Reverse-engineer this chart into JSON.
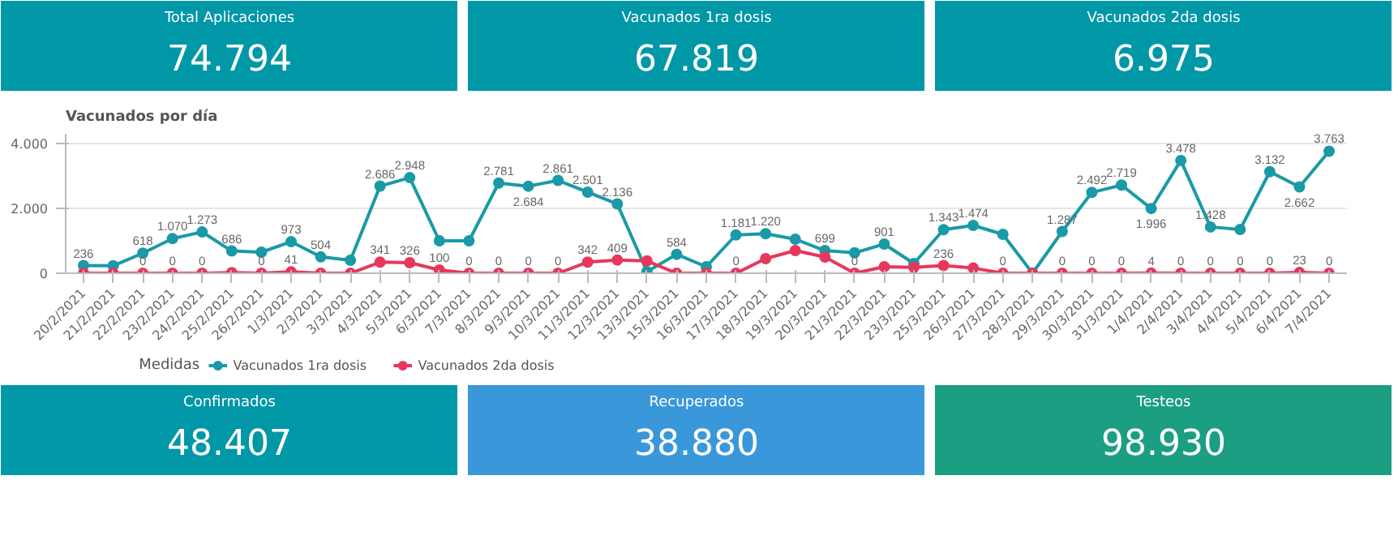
{
  "chart_data": [
    {
      "type": "other",
      "title": "Total Aplicaciones",
      "annotations": [
        "74.794"
      ],
      "colors": [
        "#0097a7"
      ]
    },
    {
      "type": "other",
      "title": "Vacunados 1ra dosis",
      "annotations": [
        "67.819"
      ],
      "colors": [
        "#0097a7"
      ]
    },
    {
      "type": "other",
      "title": "Vacunados 2da dosis",
      "annotations": [
        "6.975"
      ],
      "colors": [
        "#0097a7"
      ]
    },
    {
      "type": "line",
      "title": "Vacunados por día",
      "legend_title": "Medidas",
      "legend": "bottom",
      "grid": "y",
      "marker": "circle",
      "line_style": "solid",
      "categories": [
        "20/2/2021",
        "21/2/2021",
        "22/2/2021",
        "23/2/2021",
        "24/2/2021",
        "25/2/2021",
        "26/2/2021",
        "1/3/2021",
        "2/3/2021",
        "3/3/2021",
        "4/3/2021",
        "5/3/2021",
        "6/3/2021",
        "7/3/2021",
        "8/3/2021",
        "9/3/2021",
        "10/3/2021",
        "11/3/2021",
        "12/3/2021",
        "13/3/2021",
        "15/3/2021",
        "16/3/2021",
        "17/3/2021",
        "18/3/2021",
        "19/3/2021",
        "20/3/2021",
        "21/3/2021",
        "22/3/2021",
        "23/3/2021",
        "25/3/2021",
        "26/3/2021",
        "27/3/2021",
        "28/3/2021",
        "29/3/2021",
        "30/3/2021",
        "31/3/2021",
        "1/4/2021",
        "2/4/2021",
        "3/4/2021",
        "4/4/2021",
        "5/4/2021",
        "6/4/2021",
        "7/4/2021"
      ],
      "ylim": [
        0,
        4300
      ],
      "yticks": [
        0,
        {
          "value": 2000,
          "label": "2.000"
        },
        {
          "value": 4000,
          "label": "4.000"
        }
      ],
      "series": [
        {
          "name": "Vacunados 1ra dosis",
          "color": "#1a9aa6",
          "values": [
            236,
            230,
            618,
            1070,
            1273,
            686,
            650,
            973,
            504,
            400,
            2686,
            2948,
            1000,
            1000,
            2781,
            2684,
            2861,
            2501,
            2136,
            50,
            584,
            200,
            1181,
            1220,
            1050,
            699,
            630,
            901,
            300,
            1343,
            1474,
            1200,
            0,
            1287,
            2492,
            2719,
            1996,
            3478,
            1428,
            1350,
            3132,
            2662,
            3763
          ],
          "value_labels": [
            "236",
            null,
            "618",
            "1.070",
            "1.273",
            "686",
            null,
            "973",
            "504",
            null,
            "2.686",
            "2.948",
            null,
            null,
            "2.781",
            "2.684",
            "2.861",
            "2.501",
            "2.136",
            null,
            "584",
            null,
            "1.181",
            "1.220",
            null,
            "699",
            null,
            "901",
            null,
            "1.343",
            "1.474",
            null,
            null,
            "1.287",
            "2.492",
            "2.719",
            "1.996",
            "3.478",
            "1.428",
            null,
            "3.132",
            "2.662",
            "3.763"
          ]
        },
        {
          "name": "Vacunados 2da dosis",
          "color": "#e8375d",
          "values": [
            0,
            0,
            0,
            0,
            0,
            20,
            0,
            41,
            0,
            0,
            341,
            326,
            100,
            0,
            0,
            0,
            0,
            342,
            409,
            380,
            0,
            0,
            0,
            450,
            700,
            500,
            0,
            200,
            180,
            236,
            160,
            0,
            0,
            0,
            0,
            0,
            4,
            0,
            0,
            0,
            0,
            23,
            0
          ],
          "value_labels": [
            null,
            null,
            "0",
            "0",
            "0",
            null,
            "0",
            "41",
            null,
            null,
            "341",
            "326",
            "100",
            "0",
            "0",
            "0",
            "0",
            "342",
            "409",
            null,
            null,
            null,
            "0",
            null,
            null,
            null,
            "0",
            null,
            null,
            "236",
            null,
            "0",
            null,
            "0",
            "0",
            "0",
            "4",
            "0",
            "0",
            "0",
            "0",
            "23",
            "0"
          ]
        }
      ]
    },
    {
      "type": "other",
      "title": "Confirmados",
      "annotations": [
        "48.407"
      ],
      "colors": [
        "#0097a7"
      ]
    },
    {
      "type": "other",
      "title": "Recuperados",
      "annotations": [
        "38.880"
      ],
      "colors": [
        "#3a97d9"
      ]
    },
    {
      "type": "other",
      "title": "Testeos",
      "annotations": [
        "98.930"
      ],
      "colors": [
        "#1b9e82"
      ]
    }
  ]
}
